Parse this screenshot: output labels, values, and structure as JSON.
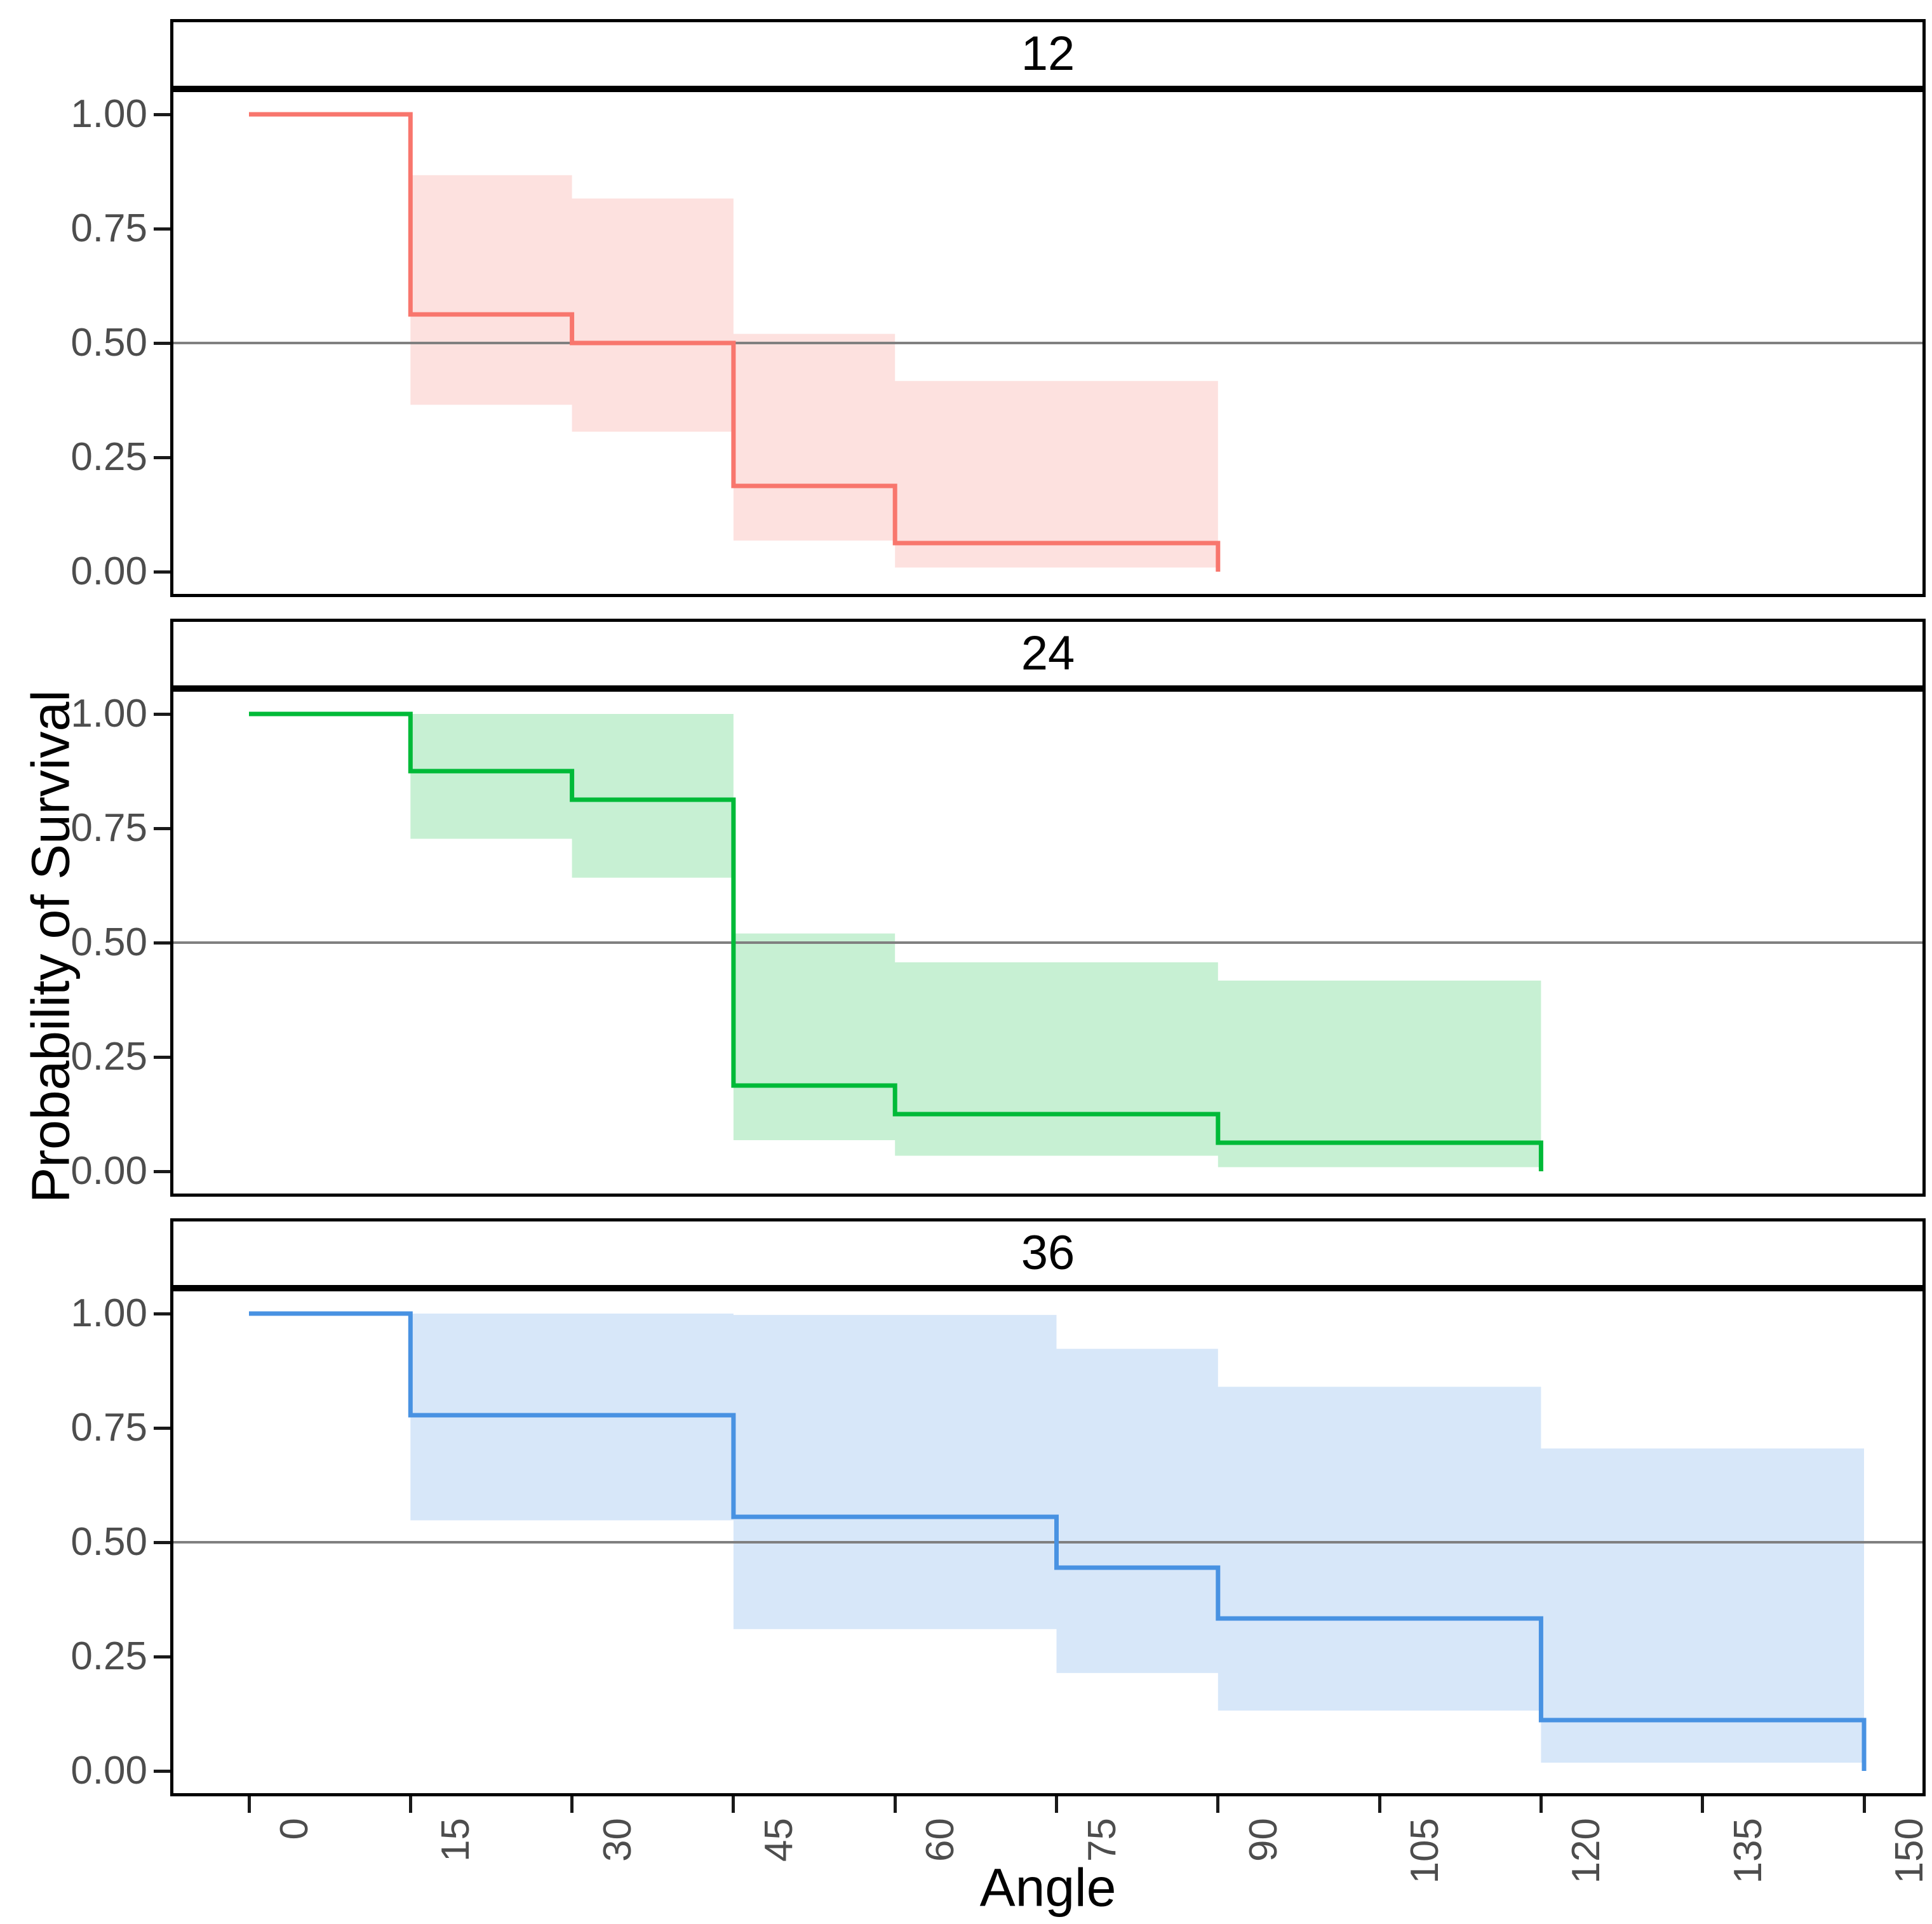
{
  "figure": {
    "y_axis_title": "Probability of Survival",
    "x_axis_title": "Angle",
    "y_tick_labels": [
      "1.00",
      "0.75",
      "0.50",
      "0.25",
      "0.00"
    ],
    "x_tick_labels": [
      "0",
      "15",
      "30",
      "45",
      "60",
      "75",
      "90",
      "105",
      "120",
      "135",
      "150"
    ],
    "facet_labels": [
      "12",
      "24",
      "36"
    ],
    "tick_text_color": "#4D4D4D",
    "strip_border_color": "#000000",
    "panel_border_color": "#000000",
    "background_color": "#ffffff"
  },
  "chart_data": {
    "type": "line",
    "subtype": "kaplan-meier-step-with-confidence-ribbon",
    "title": "",
    "xlabel": "Angle",
    "ylabel": "Probability of Survival",
    "xlim": [
      0,
      150
    ],
    "ylim": [
      0,
      1
    ],
    "x_ticks": [
      0,
      15,
      30,
      45,
      60,
      75,
      90,
      105,
      120,
      135,
      150
    ],
    "y_ticks": [
      1.0,
      0.75,
      0.5,
      0.25,
      0.0
    ],
    "grid": false,
    "legend": false,
    "reference_line": {
      "y": 0.5,
      "color": "#808080"
    },
    "facets": [
      {
        "label": "12",
        "line_color": "#F8766D",
        "ribbon_opacity": 0.22,
        "steps": [
          {
            "t0": 0,
            "t1": 15,
            "s": 1.0,
            "lo": null,
            "hi": null
          },
          {
            "t0": 15,
            "t1": 30,
            "s": 0.5625,
            "lo": 0.365,
            "hi": 0.867
          },
          {
            "t0": 30,
            "t1": 45,
            "s": 0.5,
            "lo": 0.306,
            "hi": 0.816
          },
          {
            "t0": 45,
            "t1": 60,
            "s": 0.1875,
            "lo": 0.068,
            "hi": 0.52
          },
          {
            "t0": 60,
            "t1": 90,
            "s": 0.0625,
            "lo": 0.009,
            "hi": 0.417
          }
        ],
        "drop_to_zero_at": 90
      },
      {
        "label": "24",
        "line_color": "#00BA38",
        "ribbon_opacity": 0.22,
        "steps": [
          {
            "t0": 0,
            "t1": 15,
            "s": 1.0,
            "lo": null,
            "hi": null
          },
          {
            "t0": 15,
            "t1": 30,
            "s": 0.875,
            "lo": 0.727,
            "hi": 1.0
          },
          {
            "t0": 30,
            "t1": 45,
            "s": 0.8125,
            "lo": 0.642,
            "hi": 1.0
          },
          {
            "t0": 45,
            "t1": 60,
            "s": 0.1875,
            "lo": 0.068,
            "hi": 0.52
          },
          {
            "t0": 60,
            "t1": 90,
            "s": 0.125,
            "lo": 0.034,
            "hi": 0.457
          },
          {
            "t0": 90,
            "t1": 120,
            "s": 0.0625,
            "lo": 0.009,
            "hi": 0.417
          }
        ],
        "drop_to_zero_at": 120
      },
      {
        "label": "36",
        "line_color": "#4892E2",
        "ribbon_opacity": 0.22,
        "steps": [
          {
            "t0": 0,
            "t1": 15,
            "s": 1.0,
            "lo": null,
            "hi": null
          },
          {
            "t0": 15,
            "t1": 45,
            "s": 0.7778,
            "lo": 0.548,
            "hi": 1.0
          },
          {
            "t0": 45,
            "t1": 75,
            "s": 0.5556,
            "lo": 0.31,
            "hi": 0.997
          },
          {
            "t0": 75,
            "t1": 90,
            "s": 0.4444,
            "lo": 0.214,
            "hi": 0.923
          },
          {
            "t0": 90,
            "t1": 120,
            "s": 0.3333,
            "lo": 0.132,
            "hi": 0.84
          },
          {
            "t0": 120,
            "t1": 150,
            "s": 0.1111,
            "lo": 0.018,
            "hi": 0.705
          }
        ],
        "drop_to_zero_at": 150
      }
    ]
  }
}
